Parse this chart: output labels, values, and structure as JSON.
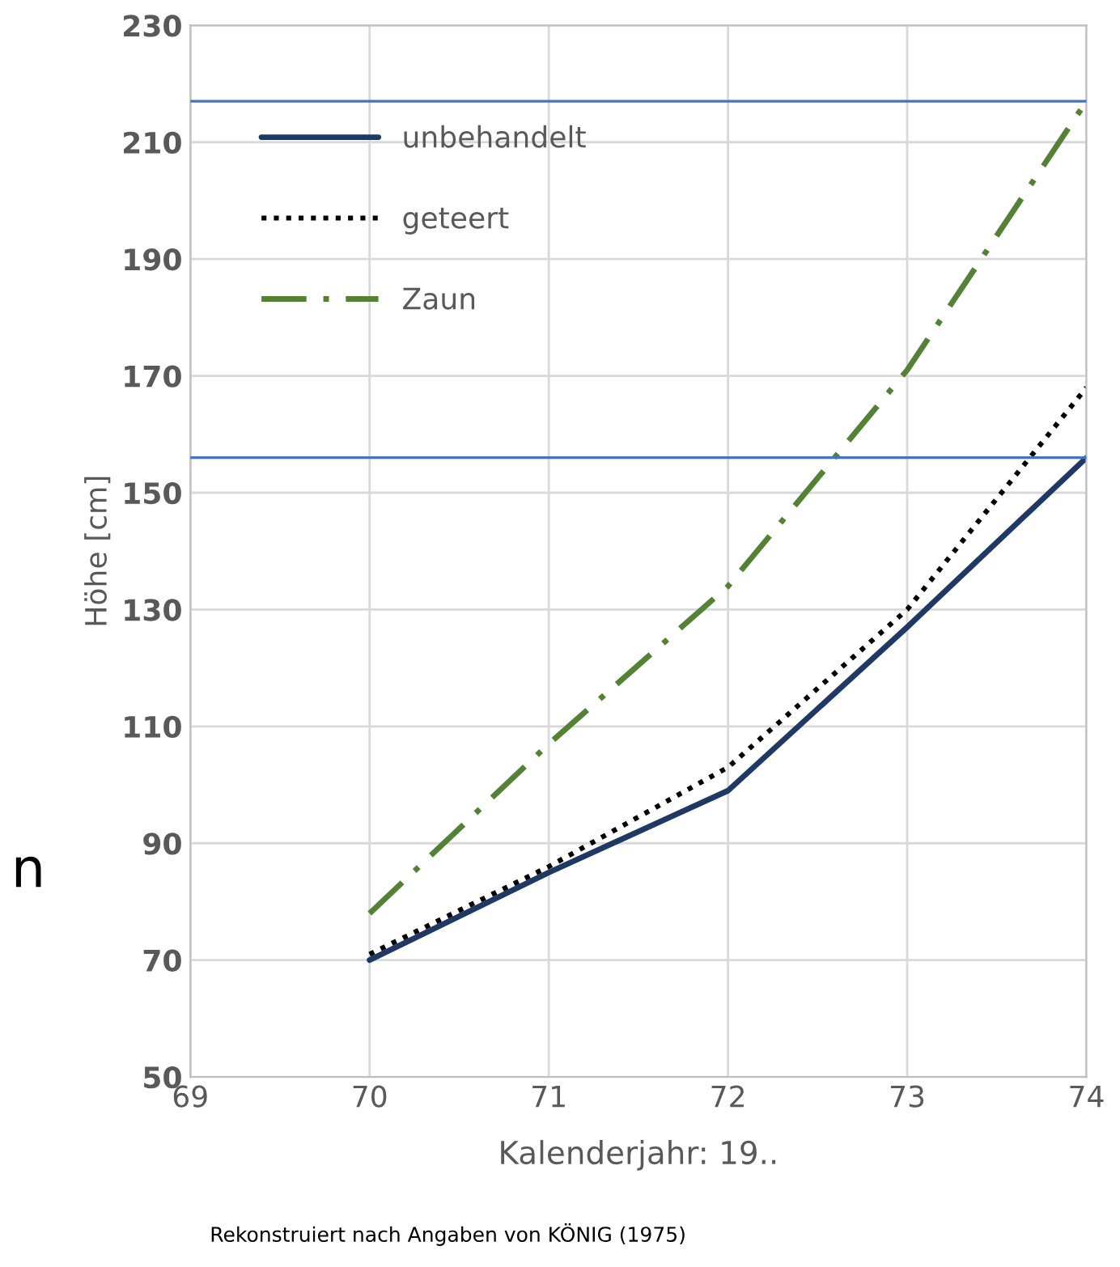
{
  "chart_data": {
    "type": "line",
    "xlabel": "Kalenderjahr: 19..",
    "ylabel": "Höhe [cm]",
    "x": [
      70,
      71,
      72,
      73,
      74
    ],
    "series": [
      {
        "name": "unbehandelt",
        "color": "#203864",
        "line_style": "solid",
        "values": [
          70,
          85,
          99,
          127,
          156
        ]
      },
      {
        "name": "geteert",
        "color": "#000000",
        "line_style": "dotted",
        "values": [
          71,
          86,
          103,
          130,
          168
        ]
      },
      {
        "name": "Zaun",
        "color": "#548235",
        "line_style": "dashdot",
        "values": [
          78,
          107,
          134,
          171,
          217
        ]
      }
    ],
    "xlim": [
      69,
      74
    ],
    "xticks": [
      69,
      70,
      71,
      72,
      73,
      74
    ],
    "ylim": [
      50,
      230
    ],
    "yticks": [
      50,
      70,
      90,
      110,
      130,
      150,
      170,
      190,
      210,
      230
    ],
    "grid": true,
    "legend": "top left",
    "marker": "none",
    "ref_lines": [
      {
        "axis": "y",
        "value": 217,
        "color": "#4472c4"
      },
      {
        "axis": "y",
        "value": 156,
        "color": "#4472c4"
      }
    ],
    "annotations": [
      "Rekonstruiert nach Angaben von KÖNIG (1975)",
      "n"
    ]
  }
}
